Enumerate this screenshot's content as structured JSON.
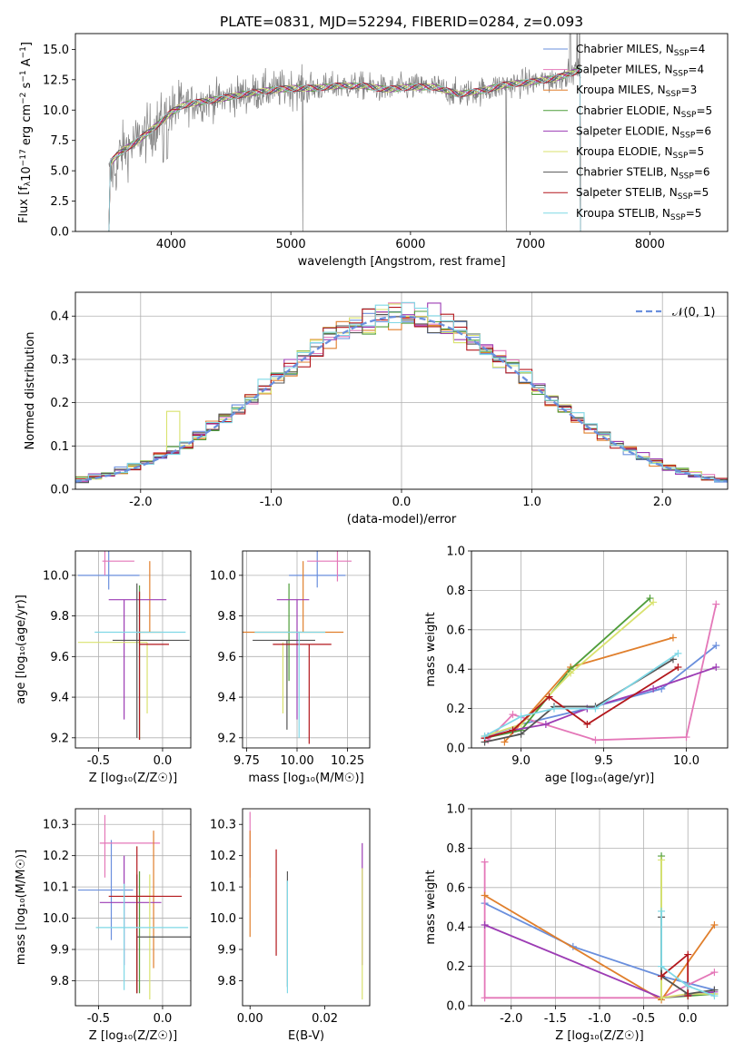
{
  "colors": {
    "Chabrier MILES": "#6a8fdd",
    "Salpeter MILES": "#e477b8",
    "Kroupa MILES": "#e07f2c",
    "Chabrier ELODIE": "#4f9d3a",
    "Salpeter ELODIE": "#9c3cb4",
    "Kroupa ELODIE": "#d9e26e",
    "Chabrier STELIB": "#555555",
    "Salpeter STELIB": "#b3171c",
    "Kroupa STELIB": "#7fd8e6",
    "gaussian": "#6a8fdd",
    "spectrum": "#808080",
    "grid": "#b0b0b0"
  },
  "chart_data": [
    {
      "id": "spectrum",
      "type": "line",
      "title": "PLATE=0831, MJD=52294, FIBERID=0284, z=0.093",
      "xlabel": "wavelength [Angstrom, rest frame]",
      "ylabel_parts": [
        "Flux [f",
        "λ",
        "10",
        "−17",
        " erg cm",
        "−2",
        " s",
        "−1",
        " A",
        "−1",
        "]"
      ],
      "xlim": [
        3200,
        8650
      ],
      "ylim": [
        0,
        16.3
      ],
      "xticks": [
        4000,
        5000,
        6000,
        7000,
        8000
      ],
      "yticks": [
        0.0,
        2.5,
        5.0,
        7.5,
        10.0,
        12.5,
        15.0
      ],
      "grid": false,
      "legend_position": "top-right",
      "legend": [
        {
          "name": "Chabrier MILES",
          "n": "4"
        },
        {
          "name": "Salpeter MILES",
          "n": "4"
        },
        {
          "name": "Kroupa MILES",
          "n": "3"
        },
        {
          "name": "Chabrier ELODIE",
          "n": "5"
        },
        {
          "name": "Salpeter ELODIE",
          "n": "6"
        },
        {
          "name": "Kroupa ELODIE",
          "n": "5"
        },
        {
          "name": "Chabrier STELIB",
          "n": "6"
        },
        {
          "name": "Salpeter STELIB",
          "n": "5"
        },
        {
          "name": "Kroupa STELIB",
          "n": "5"
        }
      ],
      "continuum_x": [
        3480,
        3550,
        3600,
        3700,
        3800,
        3900,
        4000,
        4100,
        4200,
        4400,
        4600,
        4800,
        5000,
        5200,
        5400,
        5600,
        5800,
        6000,
        6200,
        6400,
        6600,
        6800,
        7000,
        7200,
        7300,
        7420
      ],
      "continuum_y": [
        5.5,
        6.3,
        6.7,
        7.3,
        8.1,
        8.9,
        9.8,
        10.4,
        10.6,
        10.9,
        11.3,
        11.6,
        11.8,
        11.8,
        12.0,
        12.0,
        11.7,
        11.9,
        11.9,
        11.3,
        11.6,
        12.1,
        12.3,
        12.6,
        12.9,
        13.3
      ],
      "model_range": [
        3480,
        7420
      ]
    },
    {
      "id": "residuals",
      "type": "histogram",
      "xlabel": "(data-model)/error",
      "ylabel": "Normed distribution",
      "xlim": [
        -2.5,
        2.5
      ],
      "ylim": [
        0,
        0.455
      ],
      "xticks": [
        -2,
        -1,
        0,
        1,
        2
      ],
      "yticks": [
        0.0,
        0.1,
        0.2,
        0.3,
        0.4
      ],
      "grid": true,
      "legend_position": "top-right",
      "reference_curve": {
        "label": "𝒩(0, 1)",
        "mean": 0,
        "sigma": 1
      },
      "bin_width": 0.1
    },
    {
      "id": "age-vs-Z",
      "type": "errorbar",
      "xlabel": "Z [log₁₀(Z/Z☉)]",
      "ylabel": "age  [log₁₀(age/yr)]",
      "xlim": [
        -0.68,
        0.22
      ],
      "ylim": [
        9.15,
        10.12
      ],
      "xticks": [
        -0.5,
        0.0
      ],
      "yticks": [
        9.2,
        9.4,
        9.6,
        9.8,
        10.0
      ],
      "grid": true,
      "points": [
        {
          "model": "Chabrier MILES",
          "x": -0.42,
          "xerr": [
            0.24,
            0.24
          ],
          "y": 10.0,
          "yerr": [
            0.07,
            0.12
          ]
        },
        {
          "model": "Salpeter MILES",
          "x": -0.45,
          "xerr": [
            0.02,
            0.23
          ],
          "y": 10.07,
          "yerr": [
            0.07,
            0.05
          ]
        },
        {
          "model": "Kroupa MILES",
          "x": -0.1,
          "xerr": [
            0.09,
            0.09
          ],
          "y": 9.72,
          "yerr": [
            0.0,
            0.35
          ]
        },
        {
          "model": "Chabrier ELODIE",
          "x": -0.18,
          "xerr": [
            0.0,
            0.0
          ],
          "y": 9.67,
          "yerr": [
            0.48,
            0.28
          ]
        },
        {
          "model": "Salpeter ELODIE",
          "x": -0.3,
          "xerr": [
            0.12,
            0.33
          ],
          "y": 9.88,
          "yerr": [
            0.59,
            0.0
          ]
        },
        {
          "model": "Kroupa ELODIE",
          "x": -0.12,
          "xerr": [
            0.54,
            0.0
          ],
          "y": 9.67,
          "yerr": [
            0.35,
            0.0
          ]
        },
        {
          "model": "Chabrier STELIB",
          "x": -0.2,
          "xerr": [
            0.19,
            0.41
          ],
          "y": 9.68,
          "yerr": [
            0.48,
            0.28
          ]
        },
        {
          "model": "Salpeter STELIB",
          "x": -0.18,
          "xerr": [
            0.0,
            0.23
          ],
          "y": 9.66,
          "yerr": [
            0.47,
            0.26
          ]
        },
        {
          "model": "Kroupa STELIB",
          "x": -0.3,
          "xerr": [
            0.23,
            0.48
          ],
          "y": 9.72,
          "yerr": [
            0.0,
            0.0
          ]
        }
      ]
    },
    {
      "id": "age-vs-mass",
      "type": "errorbar",
      "xlabel": "mass [log₁₀(M/M☉)]",
      "ylabel": "",
      "xlim": [
        9.73,
        10.36
      ],
      "ylim": [
        9.15,
        10.12
      ],
      "xticks": [
        9.75,
        10.0,
        10.25
      ],
      "yticks": [
        9.2,
        9.4,
        9.6,
        9.8,
        10.0
      ],
      "grid": true,
      "points": [
        {
          "model": "Chabrier MILES",
          "x": 10.1,
          "xerr": [
            0.14,
            0.14
          ],
          "y": 10.0,
          "yerr": [
            0.06,
            0.12
          ]
        },
        {
          "model": "Salpeter MILES",
          "x": 10.2,
          "xerr": [
            0.15,
            0.07
          ],
          "y": 10.07,
          "yerr": [
            0.1,
            0.05
          ]
        },
        {
          "model": "Kroupa MILES",
          "x": 10.03,
          "xerr": [
            0.3,
            0.2
          ],
          "y": 9.72,
          "yerr": [
            0.0,
            0.35
          ]
        },
        {
          "model": "Chabrier ELODIE",
          "x": 9.96,
          "xerr": [
            0.0,
            0.0
          ],
          "y": 9.67,
          "yerr": [
            0.19,
            0.29
          ]
        },
        {
          "model": "Salpeter ELODIE",
          "x": 10.0,
          "xerr": [
            0.1,
            0.06
          ],
          "y": 9.88,
          "yerr": [
            0.59,
            0.0
          ]
        },
        {
          "model": "Kroupa ELODIE",
          "x": 9.93,
          "xerr": [
            0.0,
            0.0
          ],
          "y": 9.67,
          "yerr": [
            0.35,
            0.0
          ]
        },
        {
          "model": "Chabrier STELIB",
          "x": 9.95,
          "xerr": [
            0.17,
            0.14
          ],
          "y": 9.68,
          "yerr": [
            0.44,
            0.0
          ]
        },
        {
          "model": "Salpeter STELIB",
          "x": 10.06,
          "xerr": [
            0.18,
            0.11
          ],
          "y": 9.66,
          "yerr": [
            0.49,
            0.0
          ]
        },
        {
          "model": "Kroupa STELIB",
          "x": 10.01,
          "xerr": [
            0.22,
            0.13
          ],
          "y": 9.72,
          "yerr": [
            0.52,
            0.0
          ]
        }
      ]
    },
    {
      "id": "weight-vs-age",
      "type": "line",
      "xlabel": "age  [log₁₀(age/yr)]",
      "ylabel": "mass weight",
      "xlim": [
        8.7,
        10.25
      ],
      "ylim": [
        0,
        1.0
      ],
      "xticks": [
        9.0,
        9.5,
        10.0
      ],
      "yticks": [
        0.0,
        0.2,
        0.4,
        0.6,
        0.8,
        1.0
      ],
      "grid": true,
      "series": [
        {
          "model": "Chabrier MILES",
          "x": [
            8.8,
            9.0,
            9.4,
            9.85,
            10.18
          ],
          "y": [
            0.06,
            0.12,
            0.2,
            0.3,
            0.52
          ]
        },
        {
          "model": "Salpeter MILES",
          "x": [
            8.8,
            8.95,
            9.45,
            10.0,
            10.18
          ],
          "y": [
            0.04,
            0.17,
            0.04,
            0.055,
            0.73
          ]
        },
        {
          "model": "Kroupa MILES",
          "x": [
            8.9,
            9.3,
            9.92
          ],
          "y": [
            0.03,
            0.41,
            0.56
          ]
        },
        {
          "model": "Chabrier ELODIE",
          "x": [
            8.78,
            9.0,
            9.3,
            9.78
          ],
          "y": [
            0.05,
            0.09,
            0.4,
            0.76
          ]
        },
        {
          "model": "Salpeter ELODIE",
          "x": [
            8.78,
            8.95,
            9.15,
            9.4,
            9.8,
            10.18
          ],
          "y": [
            0.05,
            0.09,
            0.12,
            0.2,
            0.3,
            0.41
          ]
        },
        {
          "model": "Kroupa ELODIE",
          "x": [
            8.78,
            9.0,
            9.3,
            9.8
          ],
          "y": [
            0.06,
            0.12,
            0.38,
            0.74
          ]
        },
        {
          "model": "Chabrier STELIB",
          "x": [
            8.78,
            9.0,
            9.2,
            9.45,
            9.92
          ],
          "y": [
            0.03,
            0.07,
            0.21,
            0.21,
            0.45
          ]
        },
        {
          "model": "Salpeter STELIB",
          "x": [
            8.78,
            8.95,
            9.17,
            9.4,
            9.95
          ],
          "y": [
            0.05,
            0.09,
            0.26,
            0.12,
            0.41
          ]
        },
        {
          "model": "Kroupa STELIB",
          "x": [
            8.78,
            9.0,
            9.2,
            9.45,
            9.95
          ],
          "y": [
            0.06,
            0.16,
            0.2,
            0.2,
            0.48
          ]
        }
      ]
    },
    {
      "id": "mass-vs-Z",
      "type": "errorbar",
      "xlabel": "Z [log₁₀(Z/Z☉)]",
      "ylabel": "mass [log₁₀(M/M☉)]",
      "xlim": [
        -0.68,
        0.22
      ],
      "ylim": [
        9.72,
        10.35
      ],
      "xticks": [
        -0.5,
        0.0
      ],
      "yticks": [
        9.8,
        9.9,
        10.0,
        10.1,
        10.2,
        10.3
      ],
      "grid": true,
      "points": [
        {
          "model": "Chabrier MILES",
          "x": -0.4,
          "xerr": [
            0.26,
            0.17
          ],
          "y": 10.09,
          "yerr": [
            0.16,
            0.16
          ]
        },
        {
          "model": "Salpeter MILES",
          "x": -0.45,
          "xerr": [
            0.04,
            0.43
          ],
          "y": 10.24,
          "yerr": [
            0.11,
            0.09
          ]
        },
        {
          "model": "Kroupa MILES",
          "x": -0.07,
          "xerr": [
            0.11,
            0.0
          ],
          "y": 10.07,
          "yerr": [
            0.23,
            0.21
          ]
        },
        {
          "model": "Chabrier ELODIE",
          "x": -0.18,
          "xerr": [
            0.0,
            0.0
          ],
          "y": 10.0,
          "yerr": [
            0.24,
            0.15
          ]
        },
        {
          "model": "Salpeter ELODIE",
          "x": -0.3,
          "xerr": [
            0.19,
            0.29
          ],
          "y": 10.05,
          "yerr": [
            0.2,
            0.15
          ]
        },
        {
          "model": "Kroupa ELODIE",
          "x": -0.1,
          "xerr": [
            0.0,
            0.0
          ],
          "y": 9.92,
          "yerr": [
            0.18,
            0.22
          ]
        },
        {
          "model": "Chabrier STELIB",
          "x": -0.2,
          "xerr": [
            0.0,
            0.42
          ],
          "y": 9.94,
          "yerr": [
            0.18,
            0.2
          ]
        },
        {
          "model": "Salpeter STELIB",
          "x": -0.2,
          "xerr": [
            0.22,
            0.35
          ],
          "y": 10.07,
          "yerr": [
            0.31,
            0.16
          ]
        },
        {
          "model": "Kroupa STELIB",
          "x": -0.3,
          "xerr": [
            0.22,
            0.5
          ],
          "y": 9.97,
          "yerr": [
            0.2,
            0.14
          ]
        }
      ]
    },
    {
      "id": "mass-vs-EBV",
      "type": "errorbar",
      "xlabel": "E(B-V)",
      "ylabel": "",
      "xlim": [
        -0.002,
        0.032
      ],
      "ylim": [
        9.72,
        10.35
      ],
      "xticks": [
        0.0,
        0.02
      ],
      "yticks": [
        9.8,
        9.9,
        10.0,
        10.1,
        10.2,
        10.3
      ],
      "grid": false,
      "points": [
        {
          "model": "Salpeter MILES",
          "x": 0.0,
          "xerr": [
            0,
            0
          ],
          "y": 10.24,
          "yerr": [
            0.11,
            0.1
          ]
        },
        {
          "model": "Kroupa MILES",
          "x": 0.0,
          "xerr": [
            0,
            0
          ],
          "y": 10.1,
          "yerr": [
            0.16,
            0.18
          ]
        },
        {
          "model": "Salpeter STELIB",
          "x": 0.007,
          "xerr": [
            0,
            0
          ],
          "y": 10.05,
          "yerr": [
            0.17,
            0.17
          ]
        },
        {
          "model": "Chabrier STELIB",
          "x": 0.01,
          "xerr": [
            0,
            0
          ],
          "y": 9.95,
          "yerr": [
            0.17,
            0.2
          ]
        },
        {
          "model": "Kroupa STELIB",
          "x": 0.01,
          "xerr": [
            0,
            0
          ],
          "y": 9.94,
          "yerr": [
            0.18,
            0.18
          ]
        },
        {
          "model": "Salpeter ELODIE",
          "x": 0.03,
          "xerr": [
            0,
            0
          ],
          "y": 10.05,
          "yerr": [
            0.2,
            0.19
          ]
        },
        {
          "model": "Kroupa ELODIE",
          "x": 0.03,
          "xerr": [
            0,
            0
          ],
          "y": 9.96,
          "yerr": [
            0.22,
            0.2
          ]
        }
      ]
    },
    {
      "id": "weight-vs-Z",
      "type": "line",
      "xlabel": "Z [log₁₀(Z/Z☉)]",
      "ylabel": "mass weight",
      "xlim": [
        -2.45,
        0.45
      ],
      "ylim": [
        0,
        1.0
      ],
      "xticks": [
        -2.0,
        -1.5,
        -1.0,
        -0.5,
        0.0
      ],
      "yticks": [
        0.0,
        0.2,
        0.4,
        0.6,
        0.8,
        1.0
      ],
      "grid": true,
      "series": [
        {
          "model": "Chabrier MILES",
          "x": [
            -2.3,
            -1.3,
            -0.3,
            0.3
          ],
          "y": [
            0.52,
            0.3,
            0.15,
            0.08
          ]
        },
        {
          "model": "Salpeter MILES",
          "x": [
            -2.3,
            -2.3,
            -0.3,
            0.3
          ],
          "y": [
            0.73,
            0.04,
            0.04,
            0.17
          ]
        },
        {
          "model": "Kroupa MILES",
          "x": [
            -2.3,
            -0.3,
            0.3
          ],
          "y": [
            0.56,
            0.03,
            0.41
          ]
        },
        {
          "model": "Chabrier ELODIE",
          "x": [
            -0.3,
            -0.3,
            0.0,
            0.3
          ],
          "y": [
            0.76,
            0.04,
            0.05,
            0.06
          ]
        },
        {
          "model": "Salpeter ELODIE",
          "x": [
            -2.3,
            -0.3,
            0.3
          ],
          "y": [
            0.41,
            0.04,
            0.07
          ]
        },
        {
          "model": "Kroupa ELODIE",
          "x": [
            -0.3,
            -0.3,
            0.0,
            0.3
          ],
          "y": [
            0.74,
            0.04,
            0.06,
            0.06
          ]
        },
        {
          "model": "Chabrier STELIB",
          "x": [
            -0.3,
            -0.3,
            0.0,
            0.3
          ],
          "y": [
            0.45,
            0.15,
            0.06,
            0.08
          ]
        },
        {
          "model": "Salpeter STELIB",
          "x": [
            -0.3,
            0.0,
            0.0
          ],
          "y": [
            0.15,
            0.26,
            0.05
          ]
        },
        {
          "model": "Kroupa STELIB",
          "x": [
            -0.3,
            -0.3,
            0.0,
            0.3
          ],
          "y": [
            0.48,
            0.2,
            0.1,
            0.05
          ]
        }
      ]
    }
  ]
}
